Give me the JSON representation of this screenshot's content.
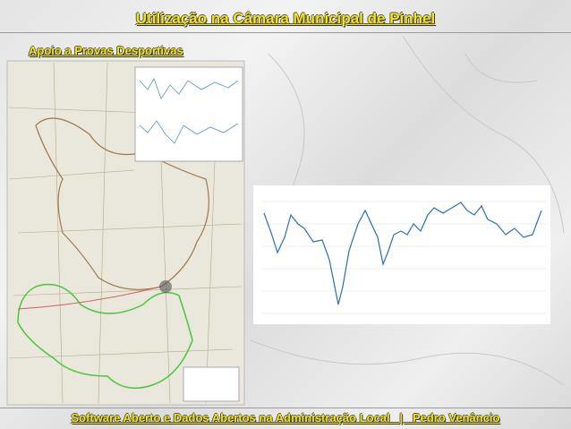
{
  "header": {
    "title": "Utilização na Câmara Municipal de Pinhel",
    "subtitle": "Apoio a Provas Desportivas"
  },
  "footer": {
    "text": "Software Aberto e Dados Abertos na Administração Local   |   Pedro Venâncio"
  }
}
